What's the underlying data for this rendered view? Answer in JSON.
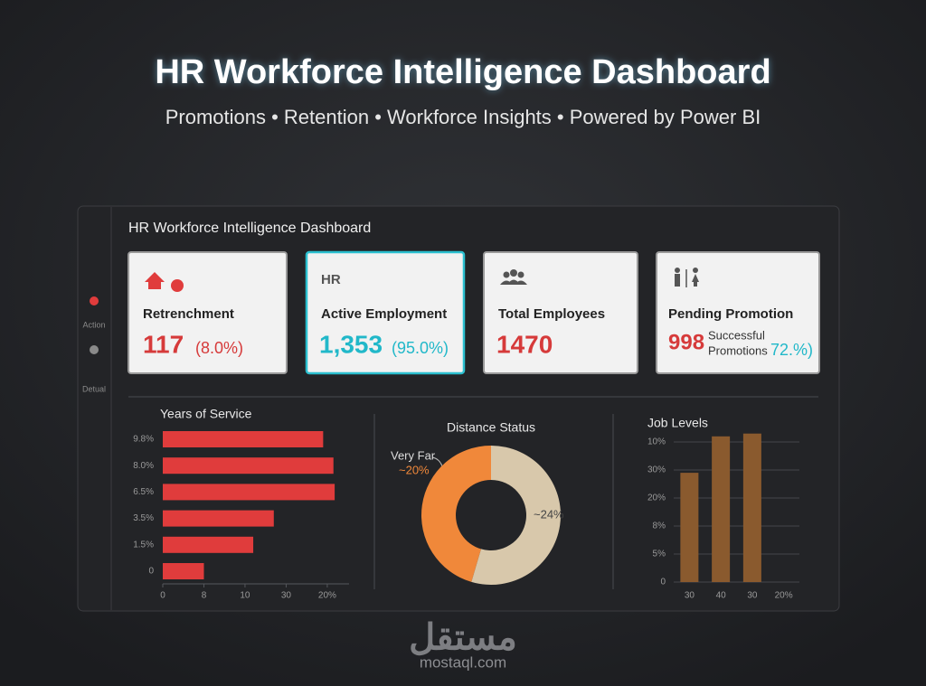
{
  "header": {
    "title": "HR Workforce Intelligence Dashboard",
    "subtitle": "Promotions • Retention • Workforce Insights • Powered by Power BI"
  },
  "panel": {
    "title": "HR Workforce Intelligence Dashboard",
    "sidebar": [
      "Action",
      "Detual"
    ]
  },
  "cards": [
    {
      "label": "Retrenchment",
      "value": "117",
      "detail": "(8.0%)"
    },
    {
      "icon_text": "HR",
      "label": "Active Employment",
      "value": "1,353",
      "detail": "(95.0%)"
    },
    {
      "label": "Total Employees",
      "value": "1470"
    },
    {
      "label": "Pending Promotion",
      "value": "998",
      "note": [
        "Successful",
        "Promotions"
      ],
      "detail": "72.%)"
    }
  ],
  "chart_data": [
    {
      "type": "bar",
      "orientation": "horizontal",
      "title": "Years of Service",
      "categories": [
        "9.8%",
        "8.0%",
        "6.5%",
        "3.5%",
        "1.5%",
        "0"
      ],
      "values": [
        39,
        41.5,
        41.8,
        27,
        22,
        10
      ],
      "color": "#e03c3c",
      "xlim": [
        0,
        42
      ],
      "xticks": [
        0,
        {
          "value": 10,
          "label": "8"
        },
        {
          "value": 20,
          "label": "10"
        },
        30,
        {
          "value": 40,
          "label": "20%"
        }
      ]
    },
    {
      "type": "pie",
      "donut": true,
      "title": "Distance Status",
      "categories": [
        "Very Far",
        null
      ],
      "values": [
        20,
        24
      ],
      "value_labels": [
        "~20%",
        "~24%"
      ],
      "colors": [
        "#f0883a",
        "#d8c8ab"
      ]
    },
    {
      "type": "bar",
      "orientation": "vertical",
      "title": "Job Levels",
      "categories": [
        "30",
        "40",
        "30",
        "20%"
      ],
      "values": [
        39,
        52,
        53,
        null
      ],
      "color": "#8a5a2e",
      "ylim": [
        0,
        55
      ],
      "yticks": [
        0,
        {
          "value": 10,
          "label": "5%"
        },
        {
          "value": 20,
          "label": "8%"
        },
        {
          "value": 30,
          "label": "20%"
        },
        {
          "value": 40,
          "label": "30%"
        },
        {
          "value": 50,
          "label": "10%"
        }
      ],
      "grid": true
    }
  ],
  "watermark": {
    "arabic": "مستقل",
    "url": "mostaql.com"
  }
}
